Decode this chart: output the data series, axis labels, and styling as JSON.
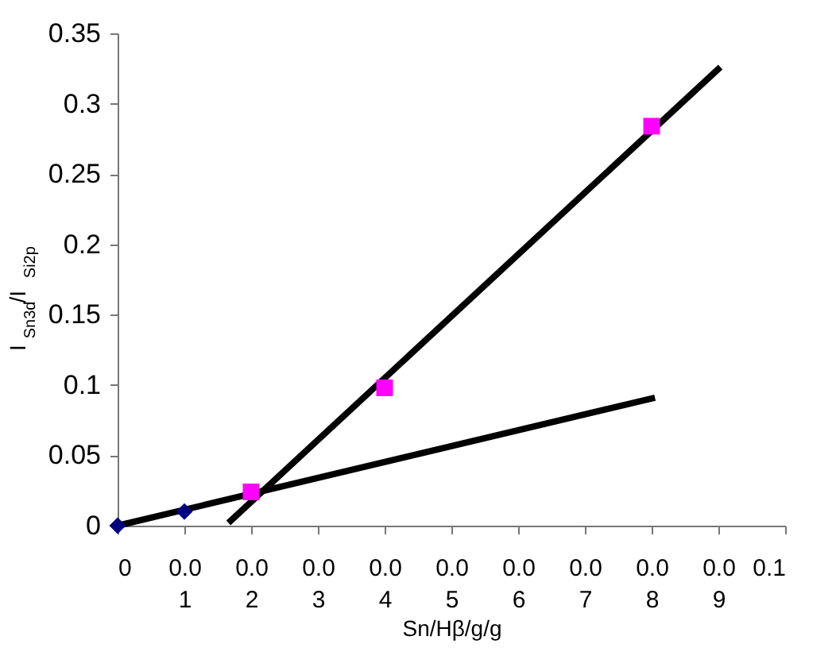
{
  "chart_data": {
    "type": "scatter",
    "xlabel": "Sn/Hβ/g/g",
    "ylabel": "I$_{Sn3d}$/I$_{Si2p}$",
    "xlim": [
      0,
      0.1
    ],
    "ylim": [
      0,
      0.35
    ],
    "xticks": [
      0,
      {
        "value": 0.01,
        "label": "0.0\n1"
      },
      {
        "value": 0.02,
        "label": "0.0\n2"
      },
      {
        "value": 0.03,
        "label": "0.0\n3"
      },
      {
        "value": 0.04,
        "label": "0.0\n4"
      },
      {
        "value": 0.05,
        "label": "0.0\n5"
      },
      {
        "value": 0.06,
        "label": "0.0\n6"
      },
      {
        "value": 0.07,
        "label": "0.0\n7"
      },
      {
        "value": 0.08,
        "label": "0.0\n8"
      },
      {
        "value": 0.09,
        "label": "0.0\n9"
      },
      0.1
    ],
    "yticks": [
      0,
      0.05,
      0.1,
      0.15,
      0.2,
      0.25,
      0.3,
      0.35
    ],
    "grid": false,
    "series": [
      {
        "type": "line",
        "color": "#000000",
        "x": [
          0,
          0.0805
        ],
        "values": [
          0,
          0.091
        ],
        "marker": "none",
        "line_style": "solid"
      },
      {
        "type": "line",
        "color": "#000000",
        "x": [
          0.0166,
          0.0903
        ],
        "values": [
          0.002,
          0.326
        ],
        "marker": "none",
        "line_style": "solid"
      },
      {
        "color": "#000080",
        "x": [
          0,
          0.01
        ],
        "values": [
          0,
          0.01
        ],
        "marker": "diamond"
      },
      {
        "color": "#ff00ff",
        "x": [
          0.02,
          0.04,
          0.08
        ],
        "values": [
          0.024,
          0.098,
          0.284
        ],
        "marker": "square"
      }
    ]
  }
}
